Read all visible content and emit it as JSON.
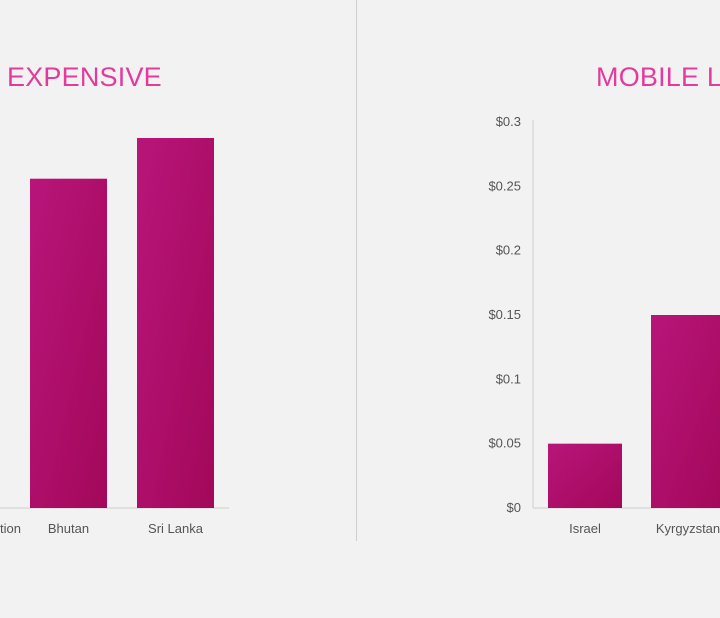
{
  "charts": {
    "left": {
      "title": "EXPENSIVE",
      "partial_first_label": "tion"
    },
    "right": {
      "title": "MOBILE L"
    }
  },
  "colors": {
    "bar": "#a3085a",
    "bar_light": "#b8157a",
    "title": "#e23b9c",
    "axis": "#cfcfcf",
    "tick_text": "#555555",
    "background": "#f2f2f2"
  },
  "chart_data": [
    {
      "type": "bar",
      "title": "EXPENSIVE",
      "categories": [
        "Bhutan",
        "Sri Lanka"
      ],
      "values": [
        0.89,
        1.0
      ],
      "note_scale": "relative values (no y-axis shown)",
      "xlabel": "",
      "ylabel": ""
    },
    {
      "type": "bar",
      "title": "MOBILE L",
      "categories": [
        "Israel",
        "Kyrgyzstan"
      ],
      "values": [
        0.05,
        0.15
      ],
      "yticks": [
        "$0",
        "$0.05",
        "$0.1",
        "$0.15",
        "$0.2",
        "$0.25",
        "$0.3"
      ],
      "ylim": [
        0,
        0.3
      ],
      "xlabel": "",
      "ylabel": ""
    }
  ]
}
